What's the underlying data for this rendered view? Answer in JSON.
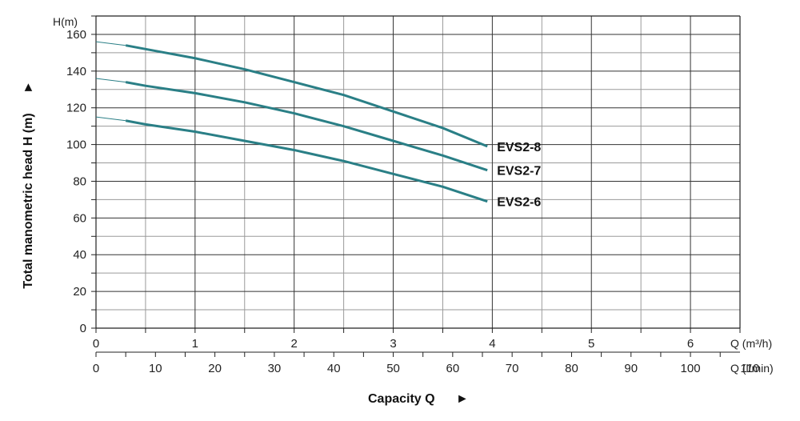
{
  "chart_data": {
    "type": "line",
    "ylabel": "Total manometric head H (m)",
    "ylabel_arrow": "►",
    "yunit": "H(m)",
    "xlabel": "Capacity Q",
    "xlabel_arrow": "►",
    "x_unit_primary": "Q (m³/h)",
    "x_unit_secondary": "Q (l/min)",
    "xlim": [
      0,
      6.5
    ],
    "ylim": [
      0,
      170
    ],
    "grid": true,
    "x_ticks_m3h": [
      "0",
      "1",
      "2",
      "3",
      "4",
      "5",
      "6"
    ],
    "x_ticks_lmin": [
      "0",
      "10",
      "20",
      "30",
      "40",
      "50",
      "60",
      "70",
      "80",
      "90",
      "100",
      "110"
    ],
    "y_ticks": [
      "0",
      "20",
      "40",
      "60",
      "80",
      "100",
      "120",
      "140",
      "160"
    ],
    "series": [
      {
        "name": "EVS2-8",
        "x": [
          0,
          0.3,
          0.5,
          1.0,
          1.5,
          2.0,
          2.5,
          3.0,
          3.5,
          3.95
        ],
        "y": [
          156,
          154,
          152,
          147,
          141,
          134,
          127,
          118,
          109,
          99
        ]
      },
      {
        "name": "EVS2-7",
        "x": [
          0,
          0.3,
          0.5,
          1.0,
          1.5,
          2.0,
          2.5,
          3.0,
          3.5,
          3.95
        ],
        "y": [
          136,
          134,
          132,
          128,
          123,
          117,
          110,
          102,
          94,
          86
        ]
      },
      {
        "name": "EVS2-6",
        "x": [
          0,
          0.3,
          0.5,
          1.0,
          1.5,
          2.0,
          2.5,
          3.0,
          3.5,
          3.95
        ],
        "y": [
          115,
          113,
          111,
          107,
          102,
          97,
          91,
          84,
          77,
          69
        ]
      }
    ],
    "colors": {
      "curve": "#2a7f86",
      "grid_major": "#333333",
      "grid_minor": "#9a9a9a"
    }
  }
}
